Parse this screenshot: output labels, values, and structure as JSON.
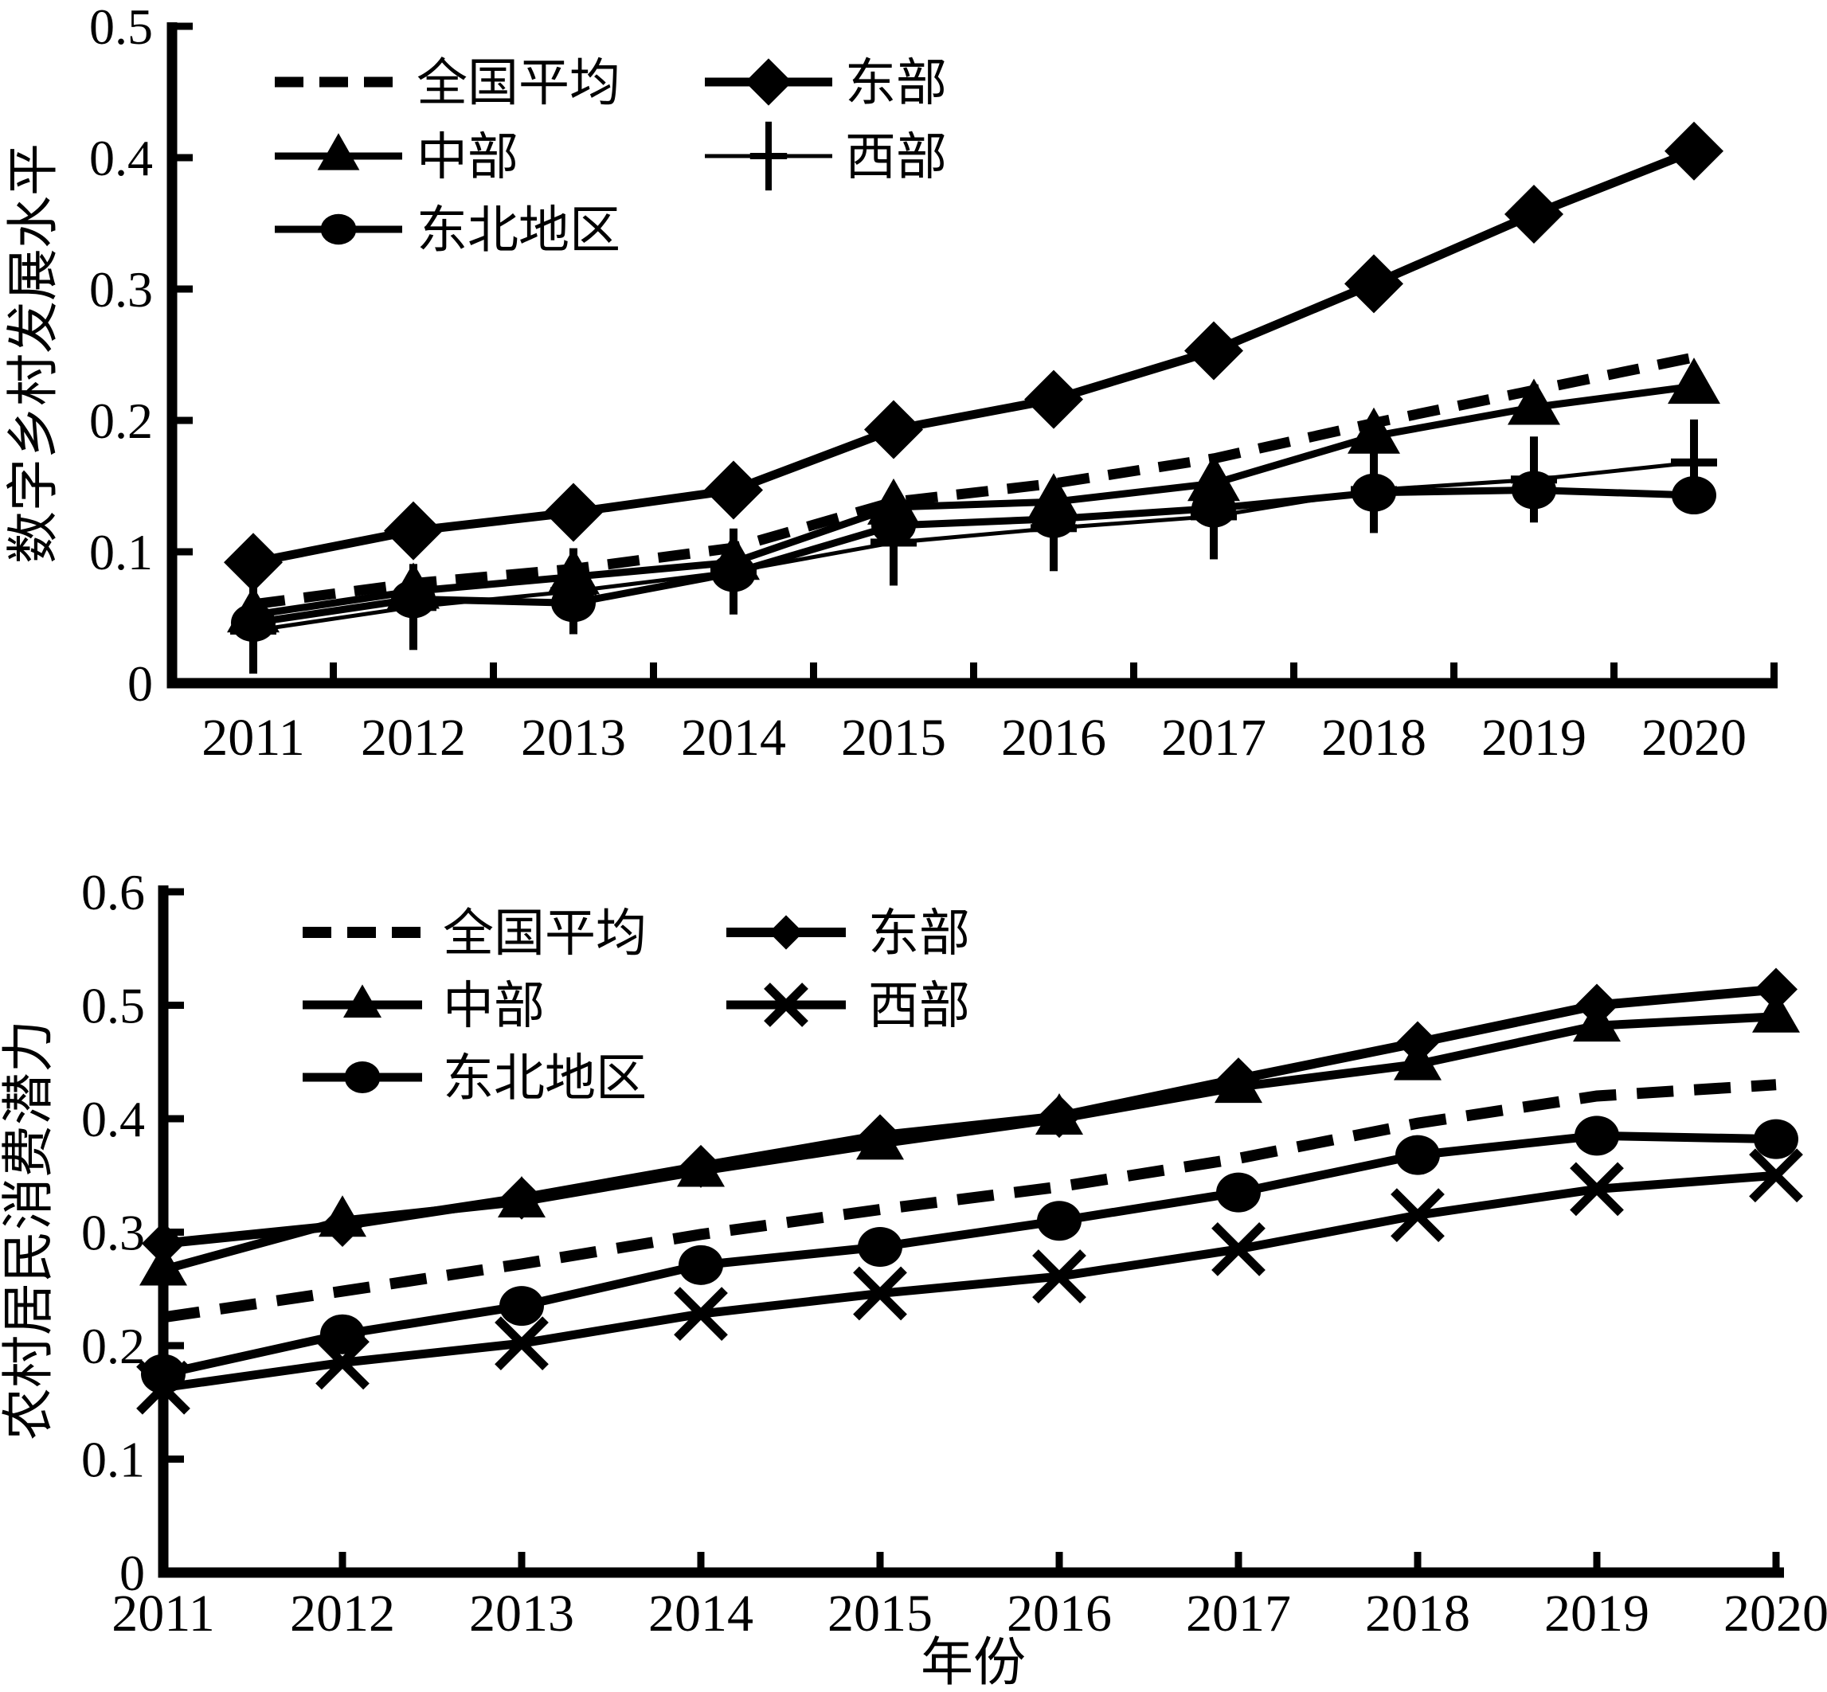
{
  "page": {
    "background": "#ffffff",
    "ink": "#000000"
  },
  "chart_data": [
    {
      "type": "line",
      "title": "",
      "ylabel": "数字乡村发展水平",
      "xlabel": "",
      "x": [
        2011,
        2012,
        2013,
        2014,
        2015,
        2016,
        2017,
        2018,
        2019,
        2020
      ],
      "ylim": [
        0,
        0.5
      ],
      "yticks": [
        0,
        0.1,
        0.2,
        0.3,
        0.4,
        0.5
      ],
      "ytick_labels": [
        "0",
        "0.1",
        "0.2",
        "0.3",
        "0.4",
        "0.5"
      ],
      "grid": false,
      "legend_position": "top-left-inside",
      "series": [
        {
          "name": "全国平均",
          "marker": "none",
          "line": "dashed",
          "values": [
            0.06,
            0.076,
            0.087,
            0.103,
            0.138,
            0.152,
            0.171,
            0.198,
            0.223,
            0.248
          ]
        },
        {
          "name": "东部",
          "marker": "diamond",
          "line": "solid",
          "values": [
            0.092,
            0.116,
            0.13,
            0.147,
            0.193,
            0.216,
            0.253,
            0.304,
            0.357,
            0.405
          ]
        },
        {
          "name": "中部",
          "marker": "triangle",
          "line": "solid",
          "values": [
            0.052,
            0.07,
            0.081,
            0.092,
            0.134,
            0.138,
            0.152,
            0.188,
            0.21,
            0.226
          ]
        },
        {
          "name": "西部",
          "marker": "plus",
          "line": "solid",
          "values": [
            0.04,
            0.058,
            0.07,
            0.085,
            0.107,
            0.118,
            0.127,
            0.147,
            0.155,
            0.168
          ]
        },
        {
          "name": "东北地区",
          "marker": "circle",
          "line": "solid",
          "values": [
            0.046,
            0.064,
            0.061,
            0.084,
            0.12,
            0.125,
            0.133,
            0.145,
            0.147,
            0.143
          ]
        }
      ]
    },
    {
      "type": "line",
      "title": "",
      "ylabel": "农村居民消费潜力",
      "xlabel": "年份",
      "x": [
        2011,
        2012,
        2013,
        2014,
        2015,
        2016,
        2017,
        2018,
        2019,
        2020
      ],
      "ylim": [
        0,
        0.6
      ],
      "yticks": [
        0,
        0.1,
        0.2,
        0.3,
        0.4,
        0.5,
        0.6
      ],
      "ytick_labels": [
        "0",
        "0.1",
        "0.2",
        "0.3",
        "0.4",
        "0.5",
        "0.6"
      ],
      "grid": false,
      "legend_position": "top-left-inside",
      "series": [
        {
          "name": "全国平均",
          "marker": "none",
          "line": "dashed",
          "values": [
            0.225,
            0.248,
            0.272,
            0.298,
            0.32,
            0.34,
            0.365,
            0.396,
            0.42,
            0.43
          ]
        },
        {
          "name": "东部",
          "marker": "diamond",
          "line": "solid",
          "values": [
            0.29,
            0.306,
            0.33,
            0.358,
            0.385,
            0.402,
            0.435,
            0.467,
            0.5,
            0.514
          ]
        },
        {
          "name": "中部",
          "marker": "triangle",
          "line": "solid",
          "values": [
            0.267,
            0.31,
            0.327,
            0.354,
            0.378,
            0.4,
            0.428,
            0.448,
            0.482,
            0.49
          ]
        },
        {
          "name": "西部",
          "marker": "x",
          "line": "solid",
          "values": [
            0.163,
            0.185,
            0.202,
            0.228,
            0.246,
            0.261,
            0.285,
            0.315,
            0.338,
            0.35
          ]
        },
        {
          "name": "东北地区",
          "marker": "circle",
          "line": "solid",
          "values": [
            0.175,
            0.21,
            0.235,
            0.271,
            0.287,
            0.31,
            0.335,
            0.368,
            0.385,
            0.382
          ]
        }
      ]
    }
  ]
}
